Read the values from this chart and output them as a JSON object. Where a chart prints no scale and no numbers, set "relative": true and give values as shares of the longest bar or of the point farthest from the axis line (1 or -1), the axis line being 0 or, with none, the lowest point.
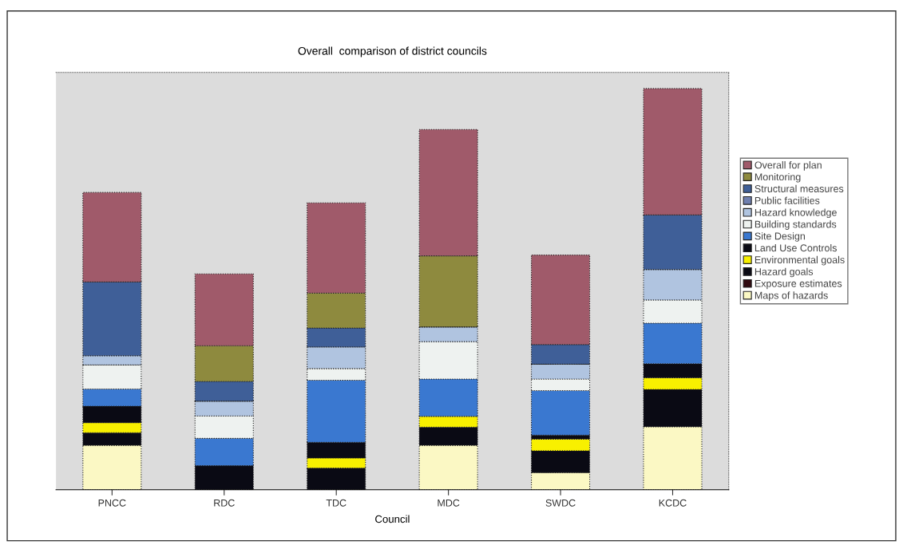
{
  "chart_data": {
    "type": "bar",
    "stacked": true,
    "relative": true,
    "title": "Overall  comparison of district councils",
    "xlabel": "Council",
    "legend": "right",
    "grid": false,
    "categories": [
      "PNCC",
      "RDC",
      "TDC",
      "MDC",
      "SWDC",
      "KCDC"
    ],
    "series": [
      {
        "name": "Maps of hazards",
        "color": "#fbf8c4",
        "values": [
          0.111,
          0,
          0,
          0.111,
          0.043,
          0.157
        ]
      },
      {
        "name": "Exposure estimates",
        "color": "#300a10",
        "values": [
          0,
          0,
          0,
          0,
          0,
          0
        ]
      },
      {
        "name": "Hazard goals",
        "color": "#0a0a14",
        "values": [
          0.031,
          0.06,
          0.054,
          0.045,
          0.054,
          0.093
        ]
      },
      {
        "name": "Environmental goals",
        "color": "#f8f000",
        "values": [
          0.025,
          0,
          0.025,
          0.027,
          0.029,
          0.029
        ]
      },
      {
        "name": "Land Use Controls",
        "color": "#0a0a14",
        "values": [
          0.041,
          0,
          0.039,
          0,
          0.01,
          0.035
        ]
      },
      {
        "name": "Site Design",
        "color": "#3a78d0",
        "values": [
          0.043,
          0.068,
          0.155,
          0.093,
          0.111,
          0.101
        ]
      },
      {
        "name": "Building standards",
        "color": "#eef2f0",
        "values": [
          0.06,
          0.056,
          0.029,
          0.093,
          0.029,
          0.058
        ]
      },
      {
        "name": "Hazard knowledge",
        "color": "#b0c4e0",
        "values": [
          0.023,
          0.037,
          0.054,
          0.037,
          0.037,
          0.076
        ]
      },
      {
        "name": "Public facilities",
        "color": "#7080b0",
        "values": [
          0,
          0,
          0,
          0,
          0,
          0
        ]
      },
      {
        "name": "Structural measures",
        "color": "#3f5f98",
        "values": [
          0.184,
          0.049,
          0.047,
          0,
          0.049,
          0.136
        ]
      },
      {
        "name": "Monitoring",
        "color": "#8e8a3e",
        "values": [
          0,
          0.089,
          0.087,
          0.177,
          0,
          0
        ]
      },
      {
        "name": "Overall for plan",
        "color": "#a05a6a",
        "values": [
          0.223,
          0.179,
          0.225,
          0.315,
          0.223,
          0.315
        ]
      }
    ]
  }
}
